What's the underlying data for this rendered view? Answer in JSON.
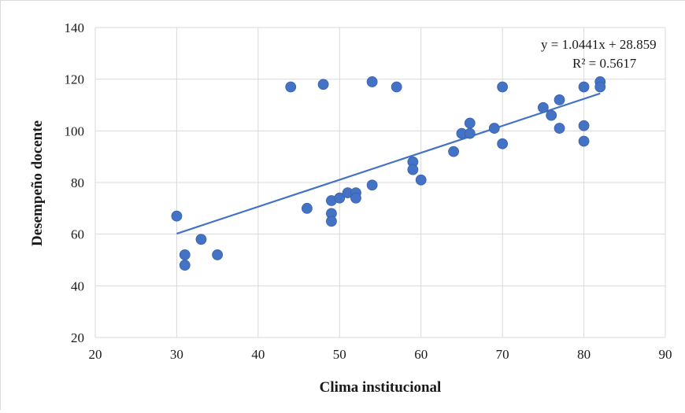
{
  "chart_data": {
    "type": "scatter",
    "xlabel": "Clima institucional",
    "ylabel": "Desempeño docente",
    "xlim": [
      20,
      90
    ],
    "ylim": [
      20,
      140
    ],
    "x_ticks": [
      20,
      30,
      40,
      50,
      60,
      70,
      80,
      90
    ],
    "y_ticks": [
      20,
      40,
      60,
      80,
      100,
      120,
      140
    ],
    "grid": "on",
    "legend": "none",
    "marker_color": "#4472c4",
    "trendline": {
      "type": "linear",
      "slope": 1.0441,
      "intercept": 28.859,
      "x_range": [
        30,
        82
      ],
      "equation": "y = 1.0441x + 28.859",
      "r_squared": "R² = 0.5617"
    },
    "points": [
      {
        "x": 30,
        "y": 67
      },
      {
        "x": 31,
        "y": 52
      },
      {
        "x": 31,
        "y": 48
      },
      {
        "x": 33,
        "y": 58
      },
      {
        "x": 35,
        "y": 52
      },
      {
        "x": 44,
        "y": 117
      },
      {
        "x": 46,
        "y": 70
      },
      {
        "x": 48,
        "y": 118
      },
      {
        "x": 49,
        "y": 73
      },
      {
        "x": 49,
        "y": 68
      },
      {
        "x": 49,
        "y": 65
      },
      {
        "x": 50,
        "y": 74
      },
      {
        "x": 51,
        "y": 76
      },
      {
        "x": 52,
        "y": 76
      },
      {
        "x": 52,
        "y": 74
      },
      {
        "x": 54,
        "y": 119
      },
      {
        "x": 54,
        "y": 79
      },
      {
        "x": 57,
        "y": 117
      },
      {
        "x": 59,
        "y": 88
      },
      {
        "x": 59,
        "y": 85
      },
      {
        "x": 60,
        "y": 81
      },
      {
        "x": 64,
        "y": 92
      },
      {
        "x": 65,
        "y": 99
      },
      {
        "x": 66,
        "y": 103
      },
      {
        "x": 66,
        "y": 99
      },
      {
        "x": 69,
        "y": 101
      },
      {
        "x": 70,
        "y": 117
      },
      {
        "x": 70,
        "y": 95
      },
      {
        "x": 75,
        "y": 109
      },
      {
        "x": 76,
        "y": 106
      },
      {
        "x": 77,
        "y": 112
      },
      {
        "x": 77,
        "y": 101
      },
      {
        "x": 80,
        "y": 117
      },
      {
        "x": 80,
        "y": 102
      },
      {
        "x": 80,
        "y": 96
      },
      {
        "x": 82,
        "y": 119
      },
      {
        "x": 82,
        "y": 117
      }
    ]
  }
}
